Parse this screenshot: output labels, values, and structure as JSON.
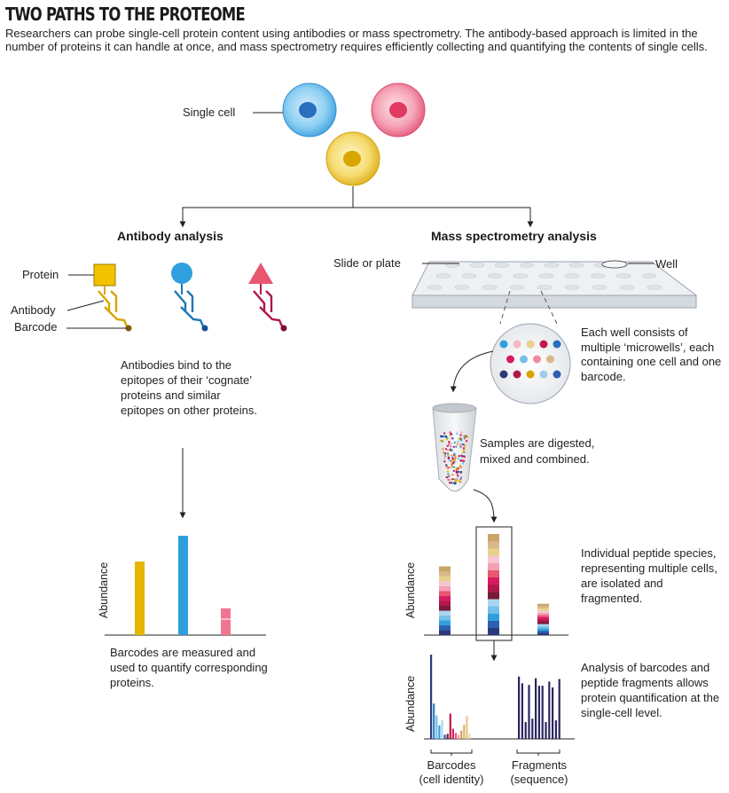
{
  "title": "TWO PATHS TO THE PROTEOME",
  "intro": "Researchers can probe single-cell protein content using antibodies or mass spectrometry. The antibody-based approach is limited in the number of proteins it can handle at once, and mass spectrometry requires efficiently collecting and quantifying the contents of single cells.",
  "single_cell_label": "Single cell",
  "colors": {
    "yellow": "#e3b505",
    "blue": "#2f9fd9",
    "pink": "#e8566f",
    "navy": "#2b3a78",
    "crimson": "#b0184a"
  },
  "antibody": {
    "heading": "Antibody analysis",
    "protein_label": "Protein",
    "antibody_label": "Antibody",
    "barcode_label": "Barcode",
    "binding_text": "Antibodies bind to the epitopes of their ‘cognate’ proteins and similar epitopes on other proteins.",
    "axis_label": "Abundance",
    "result_text": "Barcodes are measured and used to quantify corresponding proteins.",
    "bar_values": [
      0.74,
      1.0,
      0.27
    ]
  },
  "mass_spec": {
    "heading": "Mass spectrometry analysis",
    "slide_label": "Slide or plate",
    "well_label": "Well",
    "microwell_text": "Each well consists of multiple ‘microwells’, each containing one cell and one barcode.",
    "digest_text": "Samples are digested, mixed and combined.",
    "peptide_text": "Individual peptide species, representing multiple cells, are isolated and fragmented.",
    "analysis_text": "Analysis of barcodes and peptide fragments allows protein quantification at the single-cell level.",
    "axis_label_1": "Abundance",
    "axis_label_2": "Abundance",
    "barcodes_label": "Barcodes",
    "barcodes_sub": "(cell identity)",
    "fragments_label": "Fragments",
    "fragments_sub": "(sequence)",
    "stack_values": [
      0.68,
      1.0,
      0.31
    ],
    "barcode_values": [
      1.0,
      0.42,
      0.28,
      0.16,
      0.22,
      0.05,
      0.06,
      0.3,
      0.12,
      0.07,
      0.05,
      0.1,
      0.17,
      0.27,
      0.06
    ],
    "fragment_values": [
      0.74,
      0.66,
      0.2,
      0.64,
      0.24,
      0.72,
      0.63,
      0.63,
      0.2,
      0.68,
      0.61,
      0.22,
      0.71
    ]
  }
}
